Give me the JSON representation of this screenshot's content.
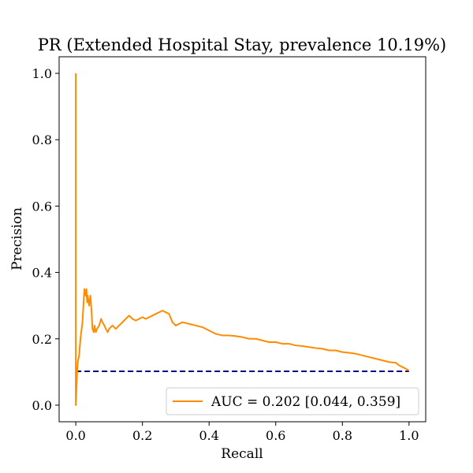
{
  "chart_data": {
    "type": "line",
    "title": "PR (Extended Hospital Stay, prevalence 10.19%)",
    "xlabel": "Recall",
    "ylabel": "Precision",
    "xlim": [
      -0.05,
      1.05
    ],
    "ylim": [
      -0.05,
      1.05
    ],
    "xticks": [
      0.0,
      0.2,
      0.4,
      0.6,
      0.8,
      1.0
    ],
    "xtick_labels": [
      "0.0",
      "0.2",
      "0.4",
      "0.6",
      "0.8",
      "1.0"
    ],
    "yticks": [
      0.0,
      0.2,
      0.4,
      0.6,
      0.8,
      1.0
    ],
    "ytick_labels": [
      "0.0",
      "0.2",
      "0.4",
      "0.6",
      "0.8",
      "1.0"
    ],
    "grid": false,
    "legend_position": "lower-right",
    "series": [
      {
        "name": "AUC = 0.202 [0.044, 0.359]",
        "color": "#ff8c00",
        "style": "solid",
        "x": [
          0.0,
          0.0,
          0.002,
          0.004,
          0.006,
          0.01,
          0.014,
          0.02,
          0.024,
          0.026,
          0.03,
          0.032,
          0.034,
          0.036,
          0.04,
          0.044,
          0.048,
          0.05,
          0.054,
          0.056,
          0.06,
          0.064,
          0.07,
          0.076,
          0.08,
          0.086,
          0.09,
          0.096,
          0.1,
          0.11,
          0.12,
          0.13,
          0.14,
          0.15,
          0.16,
          0.17,
          0.18,
          0.19,
          0.2,
          0.21,
          0.22,
          0.23,
          0.24,
          0.25,
          0.26,
          0.27,
          0.28,
          0.29,
          0.3,
          0.32,
          0.34,
          0.36,
          0.38,
          0.4,
          0.42,
          0.44,
          0.46,
          0.48,
          0.5,
          0.52,
          0.54,
          0.56,
          0.58,
          0.6,
          0.62,
          0.64,
          0.66,
          0.68,
          0.7,
          0.72,
          0.74,
          0.76,
          0.78,
          0.8,
          0.82,
          0.84,
          0.86,
          0.88,
          0.9,
          0.92,
          0.94,
          0.96,
          0.97,
          0.98,
          0.99,
          1.0
        ],
        "y": [
          1.0,
          0.0,
          0.05,
          0.1,
          0.13,
          0.15,
          0.2,
          0.25,
          0.32,
          0.35,
          0.33,
          0.35,
          0.31,
          0.33,
          0.3,
          0.33,
          0.27,
          0.23,
          0.22,
          0.24,
          0.22,
          0.23,
          0.24,
          0.26,
          0.25,
          0.24,
          0.23,
          0.22,
          0.23,
          0.24,
          0.23,
          0.24,
          0.25,
          0.26,
          0.27,
          0.26,
          0.255,
          0.26,
          0.265,
          0.26,
          0.265,
          0.27,
          0.275,
          0.28,
          0.285,
          0.28,
          0.275,
          0.25,
          0.24,
          0.25,
          0.245,
          0.24,
          0.235,
          0.225,
          0.215,
          0.21,
          0.21,
          0.208,
          0.205,
          0.2,
          0.2,
          0.195,
          0.19,
          0.19,
          0.185,
          0.185,
          0.18,
          0.178,
          0.175,
          0.172,
          0.17,
          0.165,
          0.165,
          0.16,
          0.158,
          0.155,
          0.15,
          0.145,
          0.14,
          0.135,
          0.13,
          0.128,
          0.12,
          0.115,
          0.11,
          0.104
        ]
      },
      {
        "name": "",
        "color": "#000080",
        "style": "dashed",
        "x": [
          0.0,
          1.0
        ],
        "y": [
          0.1019,
          0.1019
        ]
      }
    ]
  }
}
